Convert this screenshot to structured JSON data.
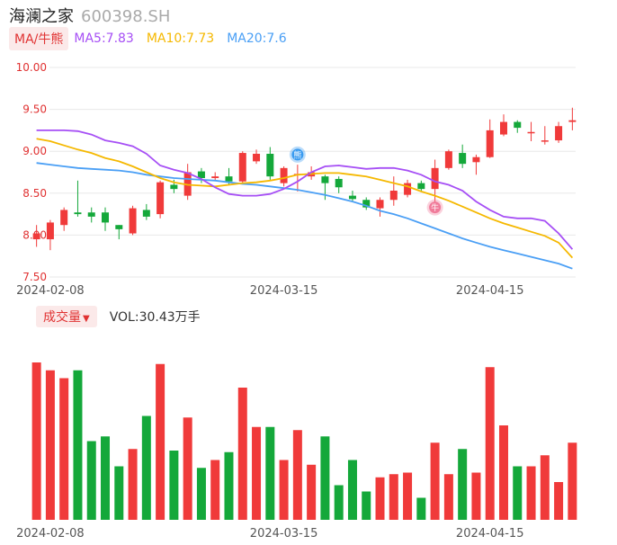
{
  "stock": {
    "name": "海澜之家",
    "code": "600398.SH"
  },
  "ma_legend": {
    "button": "MA/牛熊",
    "items": [
      {
        "label": "MA5:7.83",
        "color": "#a64ff5"
      },
      {
        "label": "MA10:7.73",
        "color": "#f5b800"
      },
      {
        "label": "MA20:7.6",
        "color": "#4a9ff5"
      }
    ]
  },
  "volume_legend": {
    "button": "成交量",
    "caret": "▼",
    "text": "VOL:30.43万手"
  },
  "colors": {
    "up": "#f03a3a",
    "down": "#14a83a",
    "grid": "#e8e8e8",
    "axis_text": "#555555",
    "price_label": "#e03232"
  },
  "markers": {
    "sell": "熊",
    "buy": "牛"
  },
  "chart_data": {
    "type": "candlestick",
    "price_ylim": [
      7.5,
      10.0
    ],
    "price_ticks": [
      "10.00",
      "9.50",
      "9.00",
      "8.50",
      "8.00",
      "7.50"
    ],
    "x_tick_labels": [
      {
        "label": "2024-02-08",
        "index": 1
      },
      {
        "label": "2024-03-15",
        "index": 18
      },
      {
        "label": "2024-04-15",
        "index": 33
      }
    ],
    "candles": [
      {
        "o": 7.95,
        "c": 8.02,
        "h": 8.12,
        "l": 7.86
      },
      {
        "o": 7.95,
        "c": 8.15,
        "h": 8.18,
        "l": 7.82
      },
      {
        "o": 8.12,
        "c": 8.3,
        "h": 8.33,
        "l": 8.05
      },
      {
        "o": 8.27,
        "c": 8.25,
        "h": 8.65,
        "l": 8.22
      },
      {
        "o": 8.27,
        "c": 8.22,
        "h": 8.33,
        "l": 8.15
      },
      {
        "o": 8.27,
        "c": 8.15,
        "h": 8.33,
        "l": 8.05
      },
      {
        "o": 8.12,
        "c": 8.07,
        "h": 8.12,
        "l": 7.95
      },
      {
        "o": 8.02,
        "c": 8.32,
        "h": 8.35,
        "l": 8.0
      },
      {
        "o": 8.3,
        "c": 8.22,
        "h": 8.37,
        "l": 8.18
      },
      {
        "o": 8.25,
        "c": 8.63,
        "h": 8.65,
        "l": 8.2
      },
      {
        "o": 8.6,
        "c": 8.55,
        "h": 8.66,
        "l": 8.5
      },
      {
        "o": 8.47,
        "c": 8.75,
        "h": 8.85,
        "l": 8.42
      },
      {
        "o": 8.76,
        "c": 8.68,
        "h": 8.8,
        "l": 8.62
      },
      {
        "o": 8.68,
        "c": 8.7,
        "h": 8.75,
        "l": 8.65
      },
      {
        "o": 8.7,
        "c": 8.64,
        "h": 8.8,
        "l": 8.6
      },
      {
        "o": 8.64,
        "c": 8.98,
        "h": 9.0,
        "l": 8.62
      },
      {
        "o": 8.88,
        "c": 8.97,
        "h": 9.02,
        "l": 8.85
      },
      {
        "o": 8.97,
        "c": 8.7,
        "h": 9.05,
        "l": 8.66
      },
      {
        "o": 8.62,
        "c": 8.8,
        "h": 8.82,
        "l": 8.58
      },
      {
        "o": 8.72,
        "c": 8.73,
        "h": 8.84,
        "l": 8.52
      },
      {
        "o": 8.7,
        "c": 8.75,
        "h": 8.82,
        "l": 8.66
      },
      {
        "o": 8.7,
        "c": 8.62,
        "h": 8.72,
        "l": 8.42
      },
      {
        "o": 8.67,
        "c": 8.57,
        "h": 8.7,
        "l": 8.5
      },
      {
        "o": 8.47,
        "c": 8.43,
        "h": 8.53,
        "l": 8.4
      },
      {
        "o": 8.42,
        "c": 8.33,
        "h": 8.45,
        "l": 8.3
      },
      {
        "o": 8.32,
        "c": 8.42,
        "h": 8.45,
        "l": 8.22
      },
      {
        "o": 8.42,
        "c": 8.53,
        "h": 8.7,
        "l": 8.35
      },
      {
        "o": 8.48,
        "c": 8.62,
        "h": 8.66,
        "l": 8.45
      },
      {
        "o": 8.62,
        "c": 8.55,
        "h": 8.65,
        "l": 8.52
      },
      {
        "o": 8.55,
        "c": 8.8,
        "h": 8.9,
        "l": 8.35
      },
      {
        "o": 8.8,
        "c": 9.0,
        "h": 9.02,
        "l": 8.78
      },
      {
        "o": 8.98,
        "c": 8.85,
        "h": 9.08,
        "l": 8.8
      },
      {
        "o": 8.87,
        "c": 8.93,
        "h": 8.96,
        "l": 8.72
      },
      {
        "o": 8.93,
        "c": 9.25,
        "h": 9.38,
        "l": 8.92
      },
      {
        "o": 9.2,
        "c": 9.35,
        "h": 9.44,
        "l": 9.18
      },
      {
        "o": 9.35,
        "c": 9.28,
        "h": 9.37,
        "l": 9.22
      },
      {
        "o": 9.23,
        "c": 9.23,
        "h": 9.35,
        "l": 9.12
      },
      {
        "o": 9.13,
        "c": 9.13,
        "h": 9.3,
        "l": 9.08
      },
      {
        "o": 9.13,
        "c": 9.3,
        "h": 9.35,
        "l": 9.1
      },
      {
        "o": 9.35,
        "c": 9.37,
        "h": 9.52,
        "l": 9.25
      }
    ],
    "ma5": [
      9.25,
      9.25,
      9.25,
      9.24,
      9.2,
      9.13,
      9.1,
      9.06,
      8.97,
      8.83,
      8.78,
      8.74,
      8.67,
      8.57,
      8.49,
      8.47,
      8.47,
      8.49,
      8.55,
      8.64,
      8.75,
      8.82,
      8.83,
      8.81,
      8.79,
      8.8,
      8.8,
      8.77,
      8.72,
      8.64,
      8.6,
      8.53,
      8.4,
      8.3,
      8.22,
      8.2,
      8.2,
      8.17,
      8.02,
      7.83
    ],
    "ma10": [
      9.15,
      9.12,
      9.07,
      9.02,
      8.98,
      8.92,
      8.88,
      8.82,
      8.75,
      8.68,
      8.63,
      8.6,
      8.59,
      8.58,
      8.6,
      8.62,
      8.63,
      8.65,
      8.68,
      8.72,
      8.73,
      8.74,
      8.74,
      8.72,
      8.7,
      8.66,
      8.62,
      8.58,
      8.52,
      8.47,
      8.41,
      8.34,
      8.27,
      8.2,
      8.14,
      8.09,
      8.04,
      7.99,
      7.91,
      7.73
    ],
    "ma20": [
      8.86,
      8.84,
      8.82,
      8.8,
      8.79,
      8.78,
      8.77,
      8.75,
      8.72,
      8.7,
      8.68,
      8.67,
      8.66,
      8.65,
      8.63,
      8.61,
      8.6,
      8.58,
      8.56,
      8.54,
      8.51,
      8.48,
      8.44,
      8.4,
      8.35,
      8.29,
      8.25,
      8.2,
      8.14,
      8.08,
      8.02,
      7.96,
      7.91,
      7.86,
      7.82,
      7.78,
      7.74,
      7.7,
      7.66,
      7.6
    ],
    "volume": [
      100,
      95,
      90,
      95,
      50,
      53,
      34,
      45,
      66,
      99,
      44,
      65,
      33,
      38,
      43,
      84,
      59,
      59,
      38,
      57,
      35,
      53,
      22,
      38,
      18,
      27,
      29,
      30,
      14,
      49,
      29,
      45,
      30,
      97,
      60,
      34,
      34,
      41,
      24,
      49
    ],
    "markers": [
      {
        "label": "熊",
        "index": 19,
        "price": 8.96
      },
      {
        "label": "牛",
        "index": 29,
        "price": 8.33
      }
    ]
  }
}
